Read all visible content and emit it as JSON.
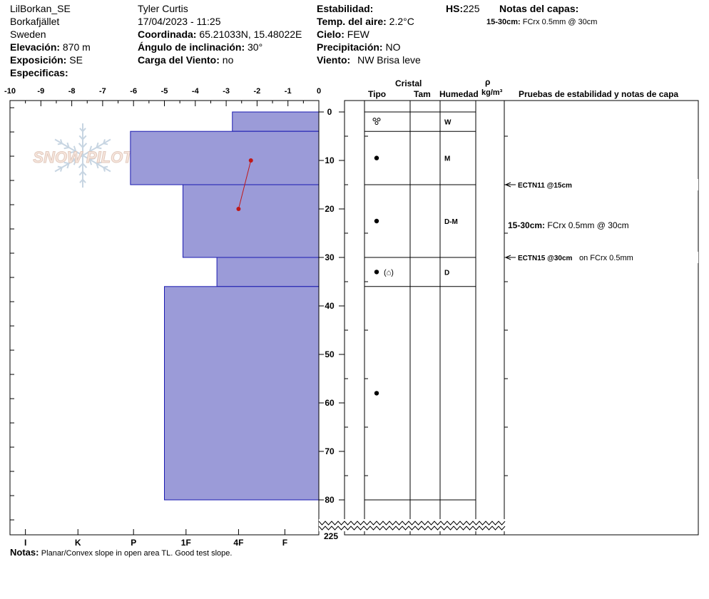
{
  "header": {
    "location": "LilBorkan_SE",
    "region": "Borkafjället",
    "country": "Sweden",
    "elevation_label": "Elevación:",
    "elevation_value": "870 m",
    "aspect_label": "Exposición:",
    "aspect_value": "SE",
    "specifics_label": "Especificas:",
    "observer": "Tyler Curtis",
    "datetime": "17/04/2023 - 11:25",
    "coord_label": "Coordinada:",
    "coord_value": "65.21033N, 15.48022E",
    "slope_label": "Ángulo de inclinación:",
    "slope_value": "30°",
    "windload_label": "Carga del Viento:",
    "windload_value": "no",
    "stability_label": "Estabilidad:",
    "airtemp_label": "Temp. del aire:",
    "airtemp_value": "2.2°C",
    "sky_label": "Cielo:",
    "sky_value": "FEW",
    "precip_label": "Precipitación:",
    "precip_value": "NO",
    "wind_label": "Viento:",
    "wind_value": "NW Brisa leve",
    "hs_label": "HS:",
    "hs_value": "225",
    "layer_notes_label": "Notas del capas:",
    "layer_note_depth": "15-30cm:",
    "layer_note_text": "FCrx 0.5mm @ 30cm"
  },
  "columns": {
    "crystal": "Cristal",
    "type": "Tipo",
    "size": "Tam",
    "moisture": "Humedad",
    "density_symbol": "ρ",
    "density_unit": "kg/m³",
    "tests_title": "Pruebas de estabilidad y notas de capa"
  },
  "watermark": "SNOW PILOT",
  "footer": {
    "notes_label": "Notas:",
    "notes_text": "Planar/Convex slope in open area TL. Good test slope."
  },
  "chart_data": {
    "type": "bar",
    "orientation": "horizontal",
    "description_axis": "hardness profile vs depth",
    "top_axis_ticks": [
      -10,
      -9,
      -8,
      -7,
      -6,
      -5,
      -4,
      -3,
      -2,
      -1,
      0
    ],
    "top_axis_labels": [
      "-10",
      "-9",
      "-8",
      "-7",
      "-6",
      "-5",
      "-4",
      "-3",
      "-2",
      "-1",
      "0"
    ],
    "hardness_ticks": [
      {
        "label": "I",
        "value": -9.5
      },
      {
        "label": "K",
        "value": -7.8
      },
      {
        "label": "P",
        "value": -6.0
      },
      {
        "label": "1F",
        "value": -4.3
      },
      {
        "label": "4F",
        "value": -2.6
      },
      {
        "label": "F",
        "value": -1.1
      }
    ],
    "depth_ticks": [
      0,
      10,
      20,
      30,
      40,
      50,
      60,
      70,
      80
    ],
    "depth_labels": [
      "0",
      "10",
      "20",
      "30",
      "40",
      "50",
      "60",
      "70",
      "80"
    ],
    "depth_bottom_label": "225",
    "ylim": [
      -2.2,
      86.7
    ],
    "xlim": [
      -10,
      0
    ],
    "bar_color": "#9b9bd8",
    "bar_edge": "#1a1ab0",
    "layers": [
      {
        "top": 0,
        "bottom": 4,
        "hardness": -2.8,
        "moisture": "W",
        "grain": "°°"
      },
      {
        "top": 4,
        "bottom": 15,
        "hardness": -6.1,
        "moisture": "M",
        "grain": "●"
      },
      {
        "top": 15,
        "bottom": 30,
        "hardness": -4.4,
        "moisture": "D-M",
        "grain": "●"
      },
      {
        "top": 30,
        "bottom": 36,
        "hardness": -3.3,
        "moisture": "D",
        "grain": "● (⌂)"
      },
      {
        "top": 36,
        "bottom": 80,
        "hardness": -5.0,
        "moisture": "",
        "grain": "●"
      }
    ],
    "grain_symbol_depths": [
      2,
      9.5,
      22.5,
      33,
      58
    ],
    "temperature_color": "#c01818",
    "temperature_profile": [
      {
        "depth": 10,
        "temp": -2.2
      },
      {
        "depth": 20,
        "temp": -2.6
      }
    ],
    "stability_tests": [
      {
        "depth": 15,
        "label": "ECTN11 @15cm",
        "extra": ""
      },
      {
        "depth": 30,
        "label": "ECTN15 @30cm",
        "extra": "on FCrx 0.5mm"
      }
    ],
    "layer_note": {
      "depth": 22.5,
      "label": "15-30cm:",
      "text": "FCrx 0.5mm @ 30cm"
    }
  }
}
